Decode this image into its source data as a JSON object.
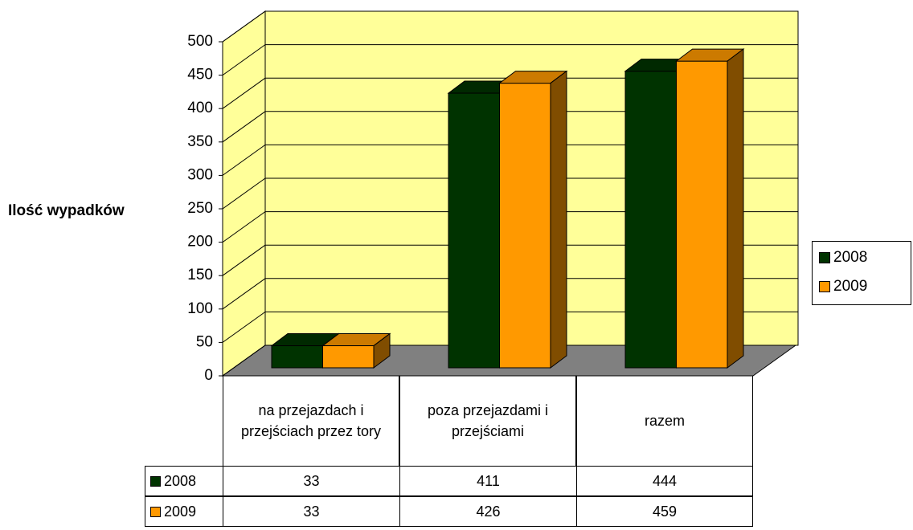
{
  "chart_data": {
    "type": "bar3d",
    "y_axis_label": "Ilość wypadków",
    "categories": [
      "na przejazdach i przejściach przez tory",
      "poza przejazdami i przejściami",
      "razem"
    ],
    "series": [
      {
        "name": "2008",
        "color": "#003300",
        "values": [
          33,
          411,
          444
        ]
      },
      {
        "name": "2009",
        "color": "#ff9900",
        "values": [
          33,
          426,
          459
        ]
      }
    ],
    "ylim": [
      0,
      500
    ],
    "yticks": [
      0,
      50,
      100,
      150,
      200,
      250,
      300,
      350,
      400,
      450,
      500
    ],
    "grid": true,
    "legend": "right",
    "data_table": true
  }
}
